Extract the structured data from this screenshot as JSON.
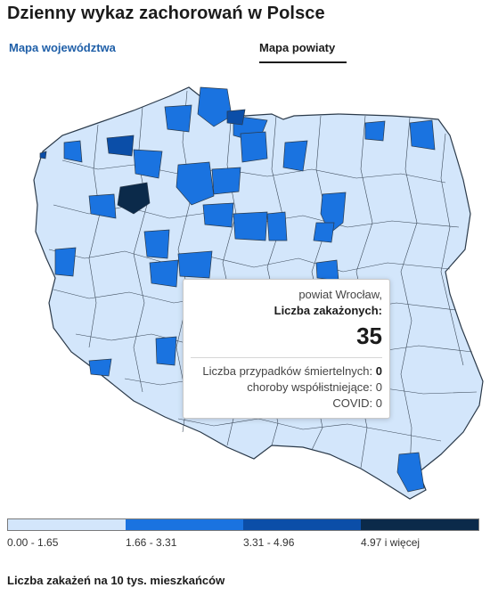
{
  "header": {
    "title": "Dzienny wykaz zachorowań w Polsce"
  },
  "tabs": [
    {
      "label": "Mapa województwa",
      "active": false
    },
    {
      "label": "Mapa powiaty",
      "active": true
    }
  ],
  "map": {
    "legend_colors": [
      "#d3e6fb",
      "#1a73e0",
      "#0b4ea8",
      "#0b2a4a"
    ],
    "border_color": "#2b3a4a",
    "highlighted_counties": [
      {
        "level": 2,
        "name": ""
      },
      {
        "level": 3,
        "name": ""
      }
    ]
  },
  "tooltip": {
    "district": "powiat Wrocław,",
    "cases_label": "Liczba zakażonych:",
    "cases_value": "35",
    "deaths_label": "Liczba przypadków śmiertelnych:",
    "deaths_value": "0",
    "comorbid_label": "choroby współistniejące:",
    "comorbid_value": "0",
    "covid_label": "COVID:",
    "covid_value": "0"
  },
  "legend": {
    "items": [
      {
        "label": "0.00 - 1.65",
        "color": "#d3e6fb"
      },
      {
        "label": "1.66 - 3.31",
        "color": "#1a73e0"
      },
      {
        "label": "3.31 - 4.96",
        "color": "#0b4ea8"
      },
      {
        "label": "4.97 i więcej",
        "color": "#0b2a4a"
      }
    ]
  },
  "footnote": "Liczba zakażeń na 10 tys. mieszkańców"
}
